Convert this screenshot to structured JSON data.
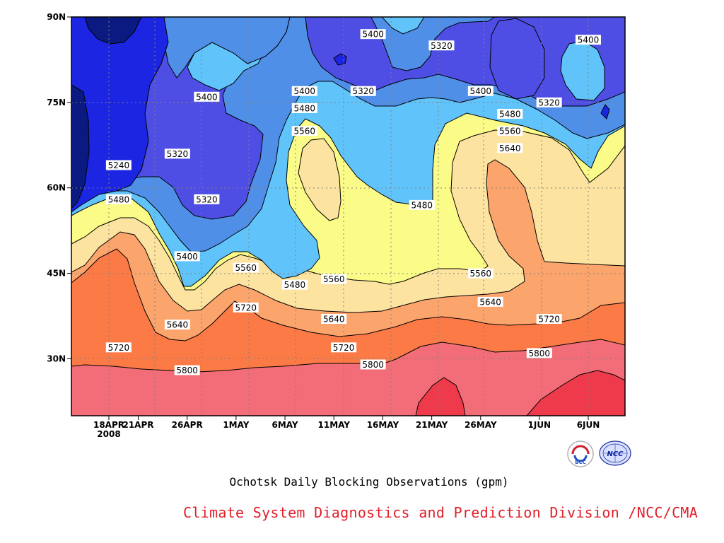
{
  "chart_data": {
    "type": "heatmap",
    "title": "Ochotsk Daily Blocking Observations (gpm)",
    "credit": "Climate System Diagnostics and Prediction Division /NCC/CMA",
    "x_ticks": [
      "18APR",
      "21APR",
      "26APR",
      "1MAY",
      "6MAY",
      "11MAY",
      "16MAY",
      "21MAY",
      "26MAY",
      "1JUN",
      "6JUN"
    ],
    "x_year": "2008",
    "y_ticks": [
      "90N",
      "75N",
      "60N",
      "45N",
      "30N"
    ],
    "y_values": [
      90,
      75,
      60,
      45,
      30
    ],
    "ylim": [
      20,
      90
    ],
    "grid": true,
    "levels": [
      5160,
      5240,
      5320,
      5400,
      5480,
      5560,
      5640,
      5720,
      5800,
      5880
    ],
    "contour_labels": [
      {
        "text": "5400",
        "x": "May 15",
        "y": 87
      },
      {
        "text": "5320",
        "x": "May 22",
        "y": 85
      },
      {
        "text": "5400",
        "x": "Jun 6",
        "y": 86
      },
      {
        "text": "5400",
        "x": "Apr 28",
        "y": 76
      },
      {
        "text": "5400",
        "x": "May 8",
        "y": 77
      },
      {
        "text": "5320",
        "x": "May 14",
        "y": 77
      },
      {
        "text": "5400",
        "x": "May 26",
        "y": 77
      },
      {
        "text": "5320",
        "x": "Jun 2",
        "y": 75
      },
      {
        "text": "5480",
        "x": "May 8",
        "y": 74
      },
      {
        "text": "5480",
        "x": "May 29",
        "y": 73
      },
      {
        "text": "5560",
        "x": "May 8",
        "y": 70
      },
      {
        "text": "5560",
        "x": "May 29",
        "y": 70
      },
      {
        "text": "5640",
        "x": "May 29",
        "y": 67
      },
      {
        "text": "5320",
        "x": "Apr 25",
        "y": 66
      },
      {
        "text": "5240",
        "x": "Apr 19",
        "y": 64
      },
      {
        "text": "5480",
        "x": "Apr 19",
        "y": 58
      },
      {
        "text": "5320",
        "x": "Apr 28",
        "y": 58
      },
      {
        "text": "5480",
        "x": "May 20",
        "y": 57
      },
      {
        "text": "5400",
        "x": "Apr 26",
        "y": 48
      },
      {
        "text": "5560",
        "x": "May 2",
        "y": 46
      },
      {
        "text": "5560",
        "x": "May 11",
        "y": 44
      },
      {
        "text": "5560",
        "x": "May 26",
        "y": 45
      },
      {
        "text": "5480",
        "x": "May 7",
        "y": 43
      },
      {
        "text": "5720",
        "x": "May 2",
        "y": 39
      },
      {
        "text": "5640",
        "x": "May 27",
        "y": 40
      },
      {
        "text": "5640",
        "x": "Apr 25",
        "y": 36
      },
      {
        "text": "5640",
        "x": "May 11",
        "y": 37
      },
      {
        "text": "5720",
        "x": "Jun 2",
        "y": 37
      },
      {
        "text": "5720",
        "x": "Apr 19",
        "y": 32
      },
      {
        "text": "5720",
        "x": "May 12",
        "y": 32
      },
      {
        "text": "5800",
        "x": "Jun 1",
        "y": 31
      },
      {
        "text": "5800",
        "x": "May 15",
        "y": 29
      },
      {
        "text": "5800",
        "x": "Apr 26",
        "y": 28
      }
    ]
  },
  "colors": {
    "plot_bg": "#f07080",
    "band_5880_plus": "#ee3a4a",
    "band_5800_5880": "#f26d78",
    "band_5720_5800": "#fb7a45",
    "band_5640_5720": "#fba46c",
    "band_5560_5640": "#fde3a0",
    "band_5480_5560": "#fbfb88",
    "band_5400_5480": "#60c4fb",
    "band_5320_5400": "#4f8fe8",
    "band_5240_5320": "#4e4ee5",
    "band_5160_5240": "#1b25e2",
    "band_below_5160": "#0b1a80",
    "credit_text": "#e0202a"
  },
  "logos": {
    "left": {
      "icon": "bcc-logo",
      "label": "BCC"
    },
    "right": {
      "icon": "ncc-logo",
      "label": "NCC"
    }
  }
}
